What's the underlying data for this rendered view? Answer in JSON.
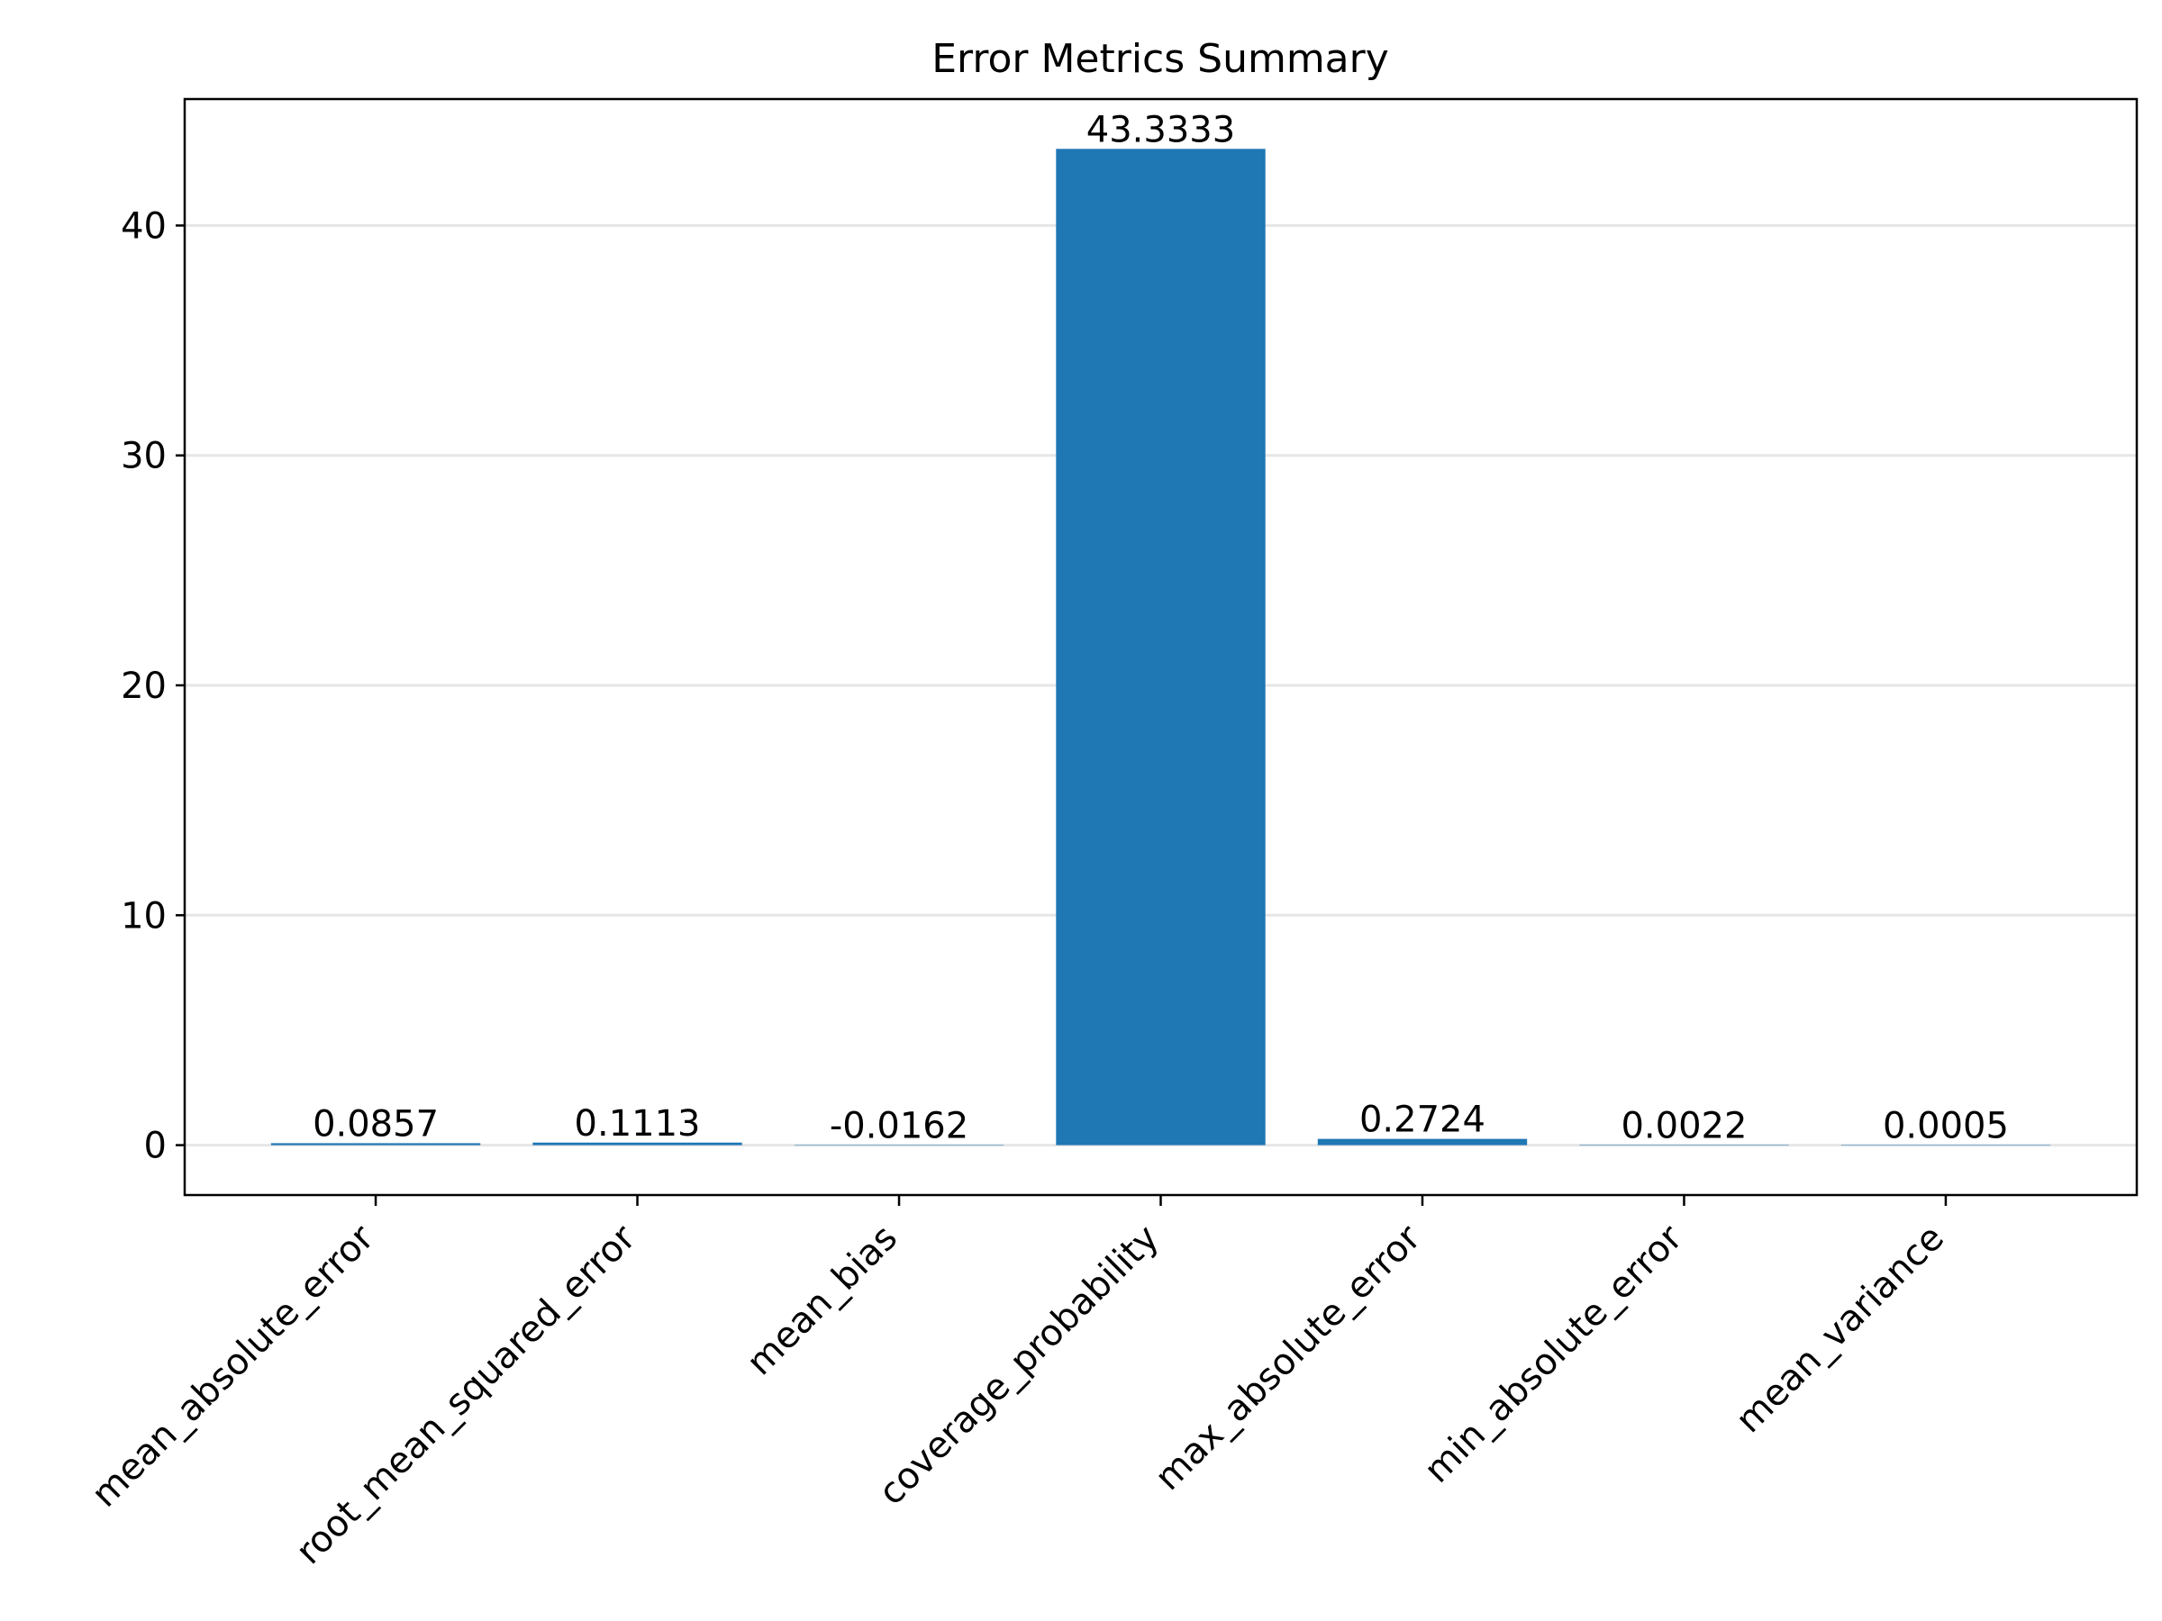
{
  "chart_data": {
    "type": "bar",
    "title": "Error Metrics Summary",
    "xlabel": "",
    "ylabel": "",
    "categories": [
      "mean_absolute_error",
      "root_mean_squared_error",
      "mean_bias",
      "coverage_probability",
      "max_absolute_error",
      "min_absolute_error",
      "mean_variance"
    ],
    "values": [
      0.0857,
      0.1113,
      -0.0162,
      43.3333,
      0.2724,
      0.0022,
      0.0005
    ],
    "value_labels": [
      "0.0857",
      "0.1113",
      "-0.0162",
      "43.3333",
      "0.2724",
      "0.0022",
      "0.0005"
    ],
    "ylim": [
      -2.17,
      45.5
    ],
    "yticks": [
      0,
      10,
      20,
      30,
      40
    ],
    "ytick_labels": [
      "0",
      "10",
      "20",
      "30",
      "40"
    ],
    "grid": "y",
    "legend": "none",
    "bar_color": "#1f77b4",
    "grid_color": "#e6e6e6"
  }
}
